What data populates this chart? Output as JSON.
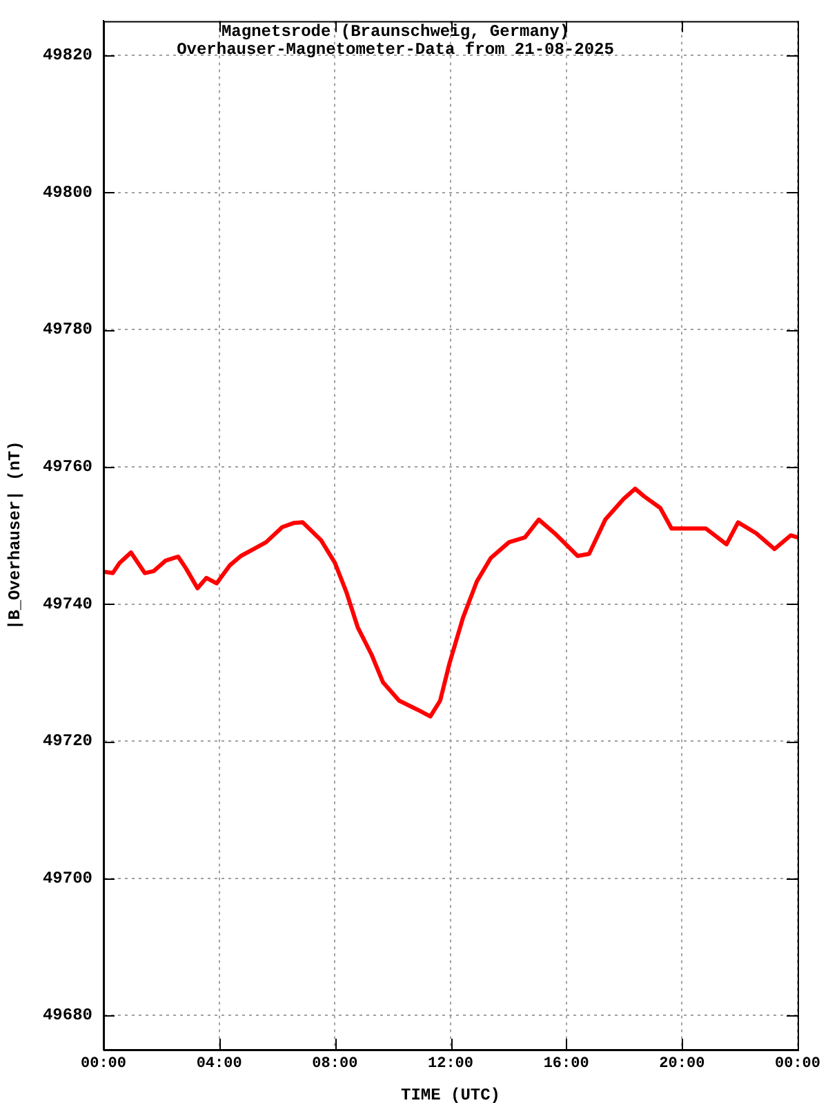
{
  "chart_data": {
    "type": "line",
    "title": "Magnetsrode (Braunschweig, Germany)",
    "subtitle": "Overhauser-Magnetometer-Data from 21-08-2025",
    "xlabel": "TIME (UTC)",
    "ylabel": "|B_Overhauser| (nT)",
    "x": [
      0,
      0.32,
      0.56,
      0.95,
      1.43,
      1.74,
      2.14,
      2.58,
      2.85,
      3.25,
      3.56,
      3.91,
      4.36,
      4.75,
      5.23,
      5.62,
      6.18,
      6.57,
      6.89,
      7.52,
      8.0,
      8.4,
      8.79,
      9.27,
      9.66,
      10.22,
      10.85,
      11.3,
      11.64,
      11.96,
      12.43,
      12.91,
      13.39,
      14.02,
      14.57,
      15.05,
      15.6,
      16.39,
      16.79,
      17.35,
      17.98,
      18.38,
      18.69,
      19.25,
      19.64,
      20.2,
      20.83,
      21.54,
      21.94,
      22.57,
      23.2,
      23.76,
      24
    ],
    "series": [
      {
        "color": "#ff0000",
        "values": [
          49744.7,
          49744.5,
          49746.0,
          49747.5,
          49744.5,
          49744.8,
          49746.3,
          49746.9,
          49745.2,
          49742.3,
          49743.8,
          49743.0,
          49745.6,
          49747.0,
          49748.1,
          49749.0,
          49751.2,
          49751.8,
          49751.9,
          49749.3,
          49746.0,
          49741.7,
          49736.6,
          49732.6,
          49728.6,
          49725.9,
          49724.6,
          49723.6,
          49725.9,
          49731.3,
          49738.0,
          49743.3,
          49746.7,
          49749.0,
          49749.7,
          49752.3,
          49750.3,
          49747.0,
          49747.3,
          49752.3,
          49755.3,
          49756.8,
          49755.7,
          49754.0,
          49751.0,
          49751.0,
          49751.0,
          49748.7,
          49751.9,
          49750.3,
          49748.0,
          49750.0,
          49749.7
        ]
      }
    ],
    "xlim": [
      0,
      24
    ],
    "xticks": [
      {
        "value": 0,
        "label": "00:00"
      },
      {
        "value": 4,
        "label": "04:00"
      },
      {
        "value": 8,
        "label": "08:00"
      },
      {
        "value": 12,
        "label": "12:00"
      },
      {
        "value": 16,
        "label": "16:00"
      },
      {
        "value": 20,
        "label": "20:00"
      },
      {
        "value": 24,
        "label": "00:00"
      }
    ],
    "ylim": [
      49675,
      49825
    ],
    "yticks": [
      49680,
      49700,
      49720,
      49740,
      49760,
      49780,
      49800,
      49820
    ],
    "grid": true,
    "line_style": "solid"
  }
}
